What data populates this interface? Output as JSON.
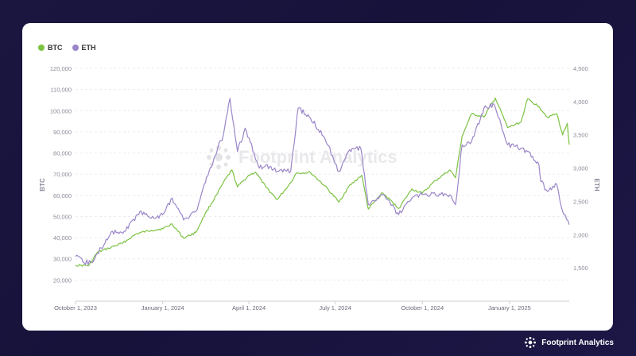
{
  "brand": {
    "name": "Footprint Analytics"
  },
  "watermark": {
    "text": "Footprint Analytics"
  },
  "legend": [
    {
      "name": "BTC",
      "color": "#7cc242"
    },
    {
      "name": "ETH",
      "color": "#9b86c9"
    }
  ],
  "chart_data": {
    "type": "line",
    "title": "",
    "xlabel": "",
    "ylabel_left": "BTC",
    "ylabel_right": "ETH",
    "ylim_left": [
      10000,
      120000
    ],
    "ylim_right": [
      1000,
      4500
    ],
    "yticks_left": [
      "20,000",
      "30,000",
      "40,000",
      "50,000",
      "60,000",
      "70,000",
      "80,000",
      "90,000",
      "100,000",
      "110,000",
      "120,000"
    ],
    "yticks_right": [
      "1,500",
      "2,000",
      "2,500",
      "3,000",
      "3,500",
      "4,000",
      "4,500"
    ],
    "xticks": [
      "October 1, 2023",
      "January 1, 2024",
      "April 1, 2024",
      "July 1, 2024",
      "October 1, 2024",
      "January 1, 2025"
    ],
    "x_range": [
      "2023-10-01",
      "2025-03-05"
    ],
    "series": [
      {
        "name": "BTC",
        "axis": "left",
        "color": "#7cc242",
        "dates": [
          "2023-10-01",
          "2023-10-15",
          "2023-10-24",
          "2023-11-05",
          "2023-11-20",
          "2023-12-05",
          "2023-12-20",
          "2024-01-01",
          "2024-01-11",
          "2024-01-23",
          "2024-02-05",
          "2024-02-15",
          "2024-02-28",
          "2024-03-05",
          "2024-03-14",
          "2024-03-20",
          "2024-04-01",
          "2024-04-08",
          "2024-04-19",
          "2024-05-01",
          "2024-05-15",
          "2024-05-21",
          "2024-06-05",
          "2024-06-20",
          "2024-07-05",
          "2024-07-15",
          "2024-07-29",
          "2024-08-05",
          "2024-08-20",
          "2024-09-06",
          "2024-09-20",
          "2024-10-01",
          "2024-10-15",
          "2024-10-30",
          "2024-11-05",
          "2024-11-12",
          "2024-11-22",
          "2024-12-05",
          "2024-12-17",
          "2024-12-30",
          "2025-01-13",
          "2025-01-20",
          "2025-02-01",
          "2025-02-10",
          "2025-02-20",
          "2025-02-26",
          "2025-03-03",
          "2025-03-05"
        ],
        "values": [
          27000,
          26800,
          33000,
          35000,
          37500,
          42000,
          43500,
          44200,
          46500,
          39800,
          42500,
          51500,
          61000,
          66000,
          72000,
          64000,
          69500,
          71000,
          63800,
          58000,
          66000,
          70500,
          70800,
          64500,
          56800,
          64000,
          69500,
          53500,
          61200,
          53800,
          63000,
          61000,
          67000,
          72000,
          68300,
          88000,
          98500,
          97000,
          106000,
          92000,
          94500,
          105500,
          102000,
          97000,
          98500,
          88500,
          94000,
          84000
        ]
      },
      {
        "name": "ETH",
        "axis": "right",
        "color": "#9b86c9",
        "dates": [
          "2023-10-01",
          "2023-10-10",
          "2023-10-20",
          "2023-10-28",
          "2023-11-09",
          "2023-11-20",
          "2023-12-08",
          "2023-12-20",
          "2024-01-01",
          "2024-01-11",
          "2024-01-23",
          "2024-02-05",
          "2024-02-15",
          "2024-02-28",
          "2024-03-05",
          "2024-03-12",
          "2024-03-20",
          "2024-03-28",
          "2024-04-12",
          "2024-04-19",
          "2024-05-01",
          "2024-05-15",
          "2024-05-23",
          "2024-06-05",
          "2024-06-20",
          "2024-07-05",
          "2024-07-15",
          "2024-07-28",
          "2024-08-05",
          "2024-08-20",
          "2024-09-06",
          "2024-09-20",
          "2024-10-01",
          "2024-10-15",
          "2024-10-30",
          "2024-11-05",
          "2024-11-12",
          "2024-11-22",
          "2024-12-05",
          "2024-12-16",
          "2024-12-30",
          "2025-01-13",
          "2025-01-20",
          "2025-02-01",
          "2025-02-03",
          "2025-02-10",
          "2025-02-20",
          "2025-02-26",
          "2025-03-05"
        ],
        "values": [
          1670,
          1580,
          1600,
          1800,
          2050,
          2020,
          2350,
          2250,
          2300,
          2550,
          2220,
          2350,
          2780,
          3300,
          3500,
          4050,
          3250,
          3600,
          3000,
          3050,
          2950,
          2950,
          3900,
          3750,
          3450,
          2950,
          3250,
          3300,
          2450,
          2600,
          2300,
          2550,
          2600,
          2600,
          2600,
          2450,
          3350,
          3400,
          3900,
          3950,
          3350,
          3300,
          3250,
          3050,
          2800,
          2650,
          2750,
          2350,
          2150
        ]
      }
    ]
  }
}
